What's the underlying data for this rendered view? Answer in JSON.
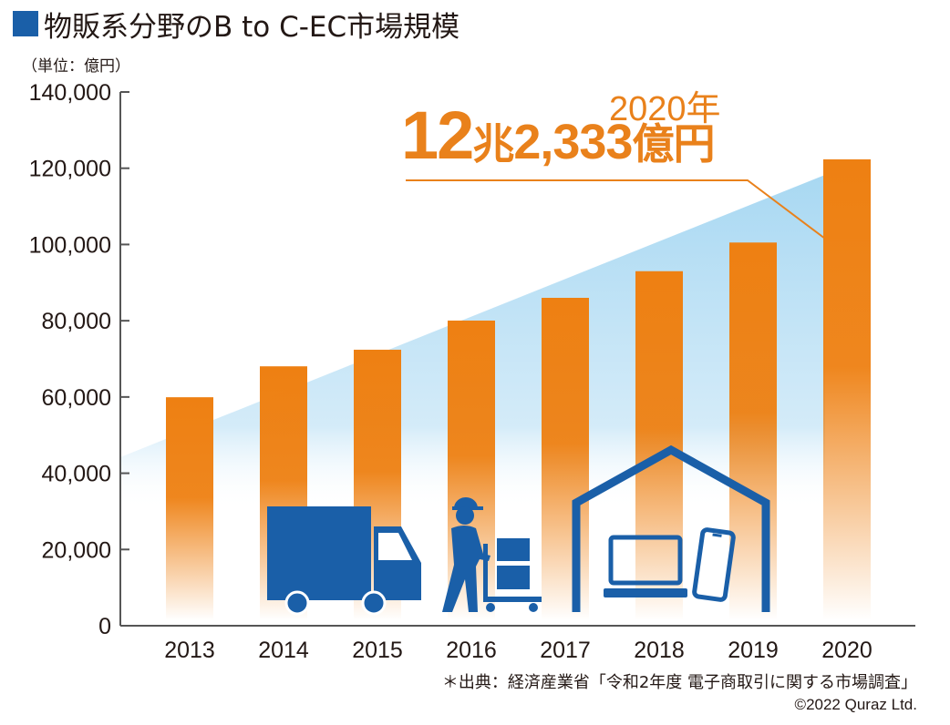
{
  "title": "物販系分野のB to C-EC市場規模",
  "unit_label": "（単位：億円）",
  "callout": {
    "year": "2020年",
    "amount_part1": "12",
    "amount_part2": "兆",
    "amount_part3": "2,333",
    "amount_part4": "億円"
  },
  "source": "＊出典：経済産業省「令和2年度 電子商取引に関する市場調査」",
  "copyright": "©2022 Quraz Ltd.",
  "colors": {
    "bar": "#ee8012",
    "axis": "#555555",
    "trend_band": "#a8d8f2",
    "icons": "#1a5fa8",
    "title_mark": "#1a5fa8",
    "callout": "#e9811b"
  },
  "icons": [
    "delivery-truck-icon",
    "delivery-worker-icon",
    "house-icon",
    "laptop-icon",
    "smartphone-icon"
  ],
  "chart_data": {
    "type": "bar",
    "categories": [
      "2013",
      "2014",
      "2015",
      "2016",
      "2017",
      "2018",
      "2019",
      "2020"
    ],
    "values": [
      59931,
      68043,
      72398,
      80043,
      86008,
      92992,
      100515,
      122333
    ],
    "ylim": [
      0,
      140000
    ],
    "yticks": [
      0,
      20000,
      40000,
      60000,
      80000,
      100000,
      120000,
      140000
    ],
    "ytick_labels": [
      "0",
      "20,000",
      "40,000",
      "60,000",
      "80,000",
      "100,000",
      "120,000",
      "140,000"
    ],
    "grid": false,
    "legend": "none"
  }
}
